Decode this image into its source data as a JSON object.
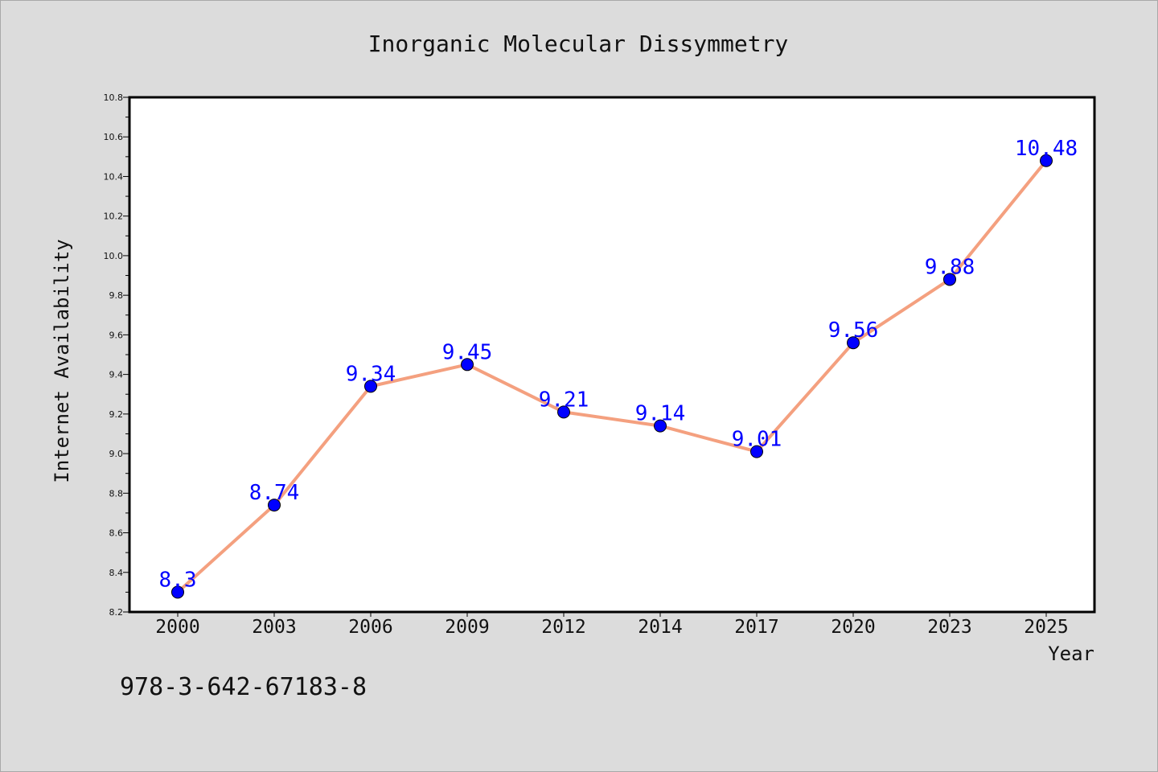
{
  "chart_data": {
    "type": "line",
    "title": "Inorganic Molecular Dissymmetry",
    "xlabel": "Year",
    "ylabel": "Internet Availability",
    "categories": [
      "2000",
      "2003",
      "2006",
      "2009",
      "2012",
      "2014",
      "2017",
      "2020",
      "2023",
      "2025"
    ],
    "series": [
      {
        "values": [
          8.3,
          8.74,
          9.34,
          9.45,
          9.21,
          9.14,
          9.01,
          9.56,
          9.88,
          10.48
        ],
        "data_labels": [
          "8.3",
          "8.74",
          "9.34",
          "9.45",
          "9.21",
          "9.14",
          "9.01",
          "9.56",
          "9.88",
          "10.48"
        ],
        "line_color": "#f4a07f",
        "marker_color": "#0000ff"
      }
    ],
    "ylim": [
      8.2,
      10.8
    ],
    "yticks": [
      "8.2",
      "8.4",
      "8.6",
      "8.8",
      "9.0",
      "9.2",
      "9.4",
      "9.6",
      "9.8",
      "10.0",
      "10.2",
      "10.4",
      "10.6",
      "10.8"
    ],
    "grid": false,
    "legend": "none"
  },
  "footer": {
    "isbn": "978-3-642-67183-8"
  },
  "colors": {
    "background": "#dcdcdc",
    "plot_background": "#ffffff",
    "axis": "#000000",
    "data_label": "#0000ff"
  }
}
